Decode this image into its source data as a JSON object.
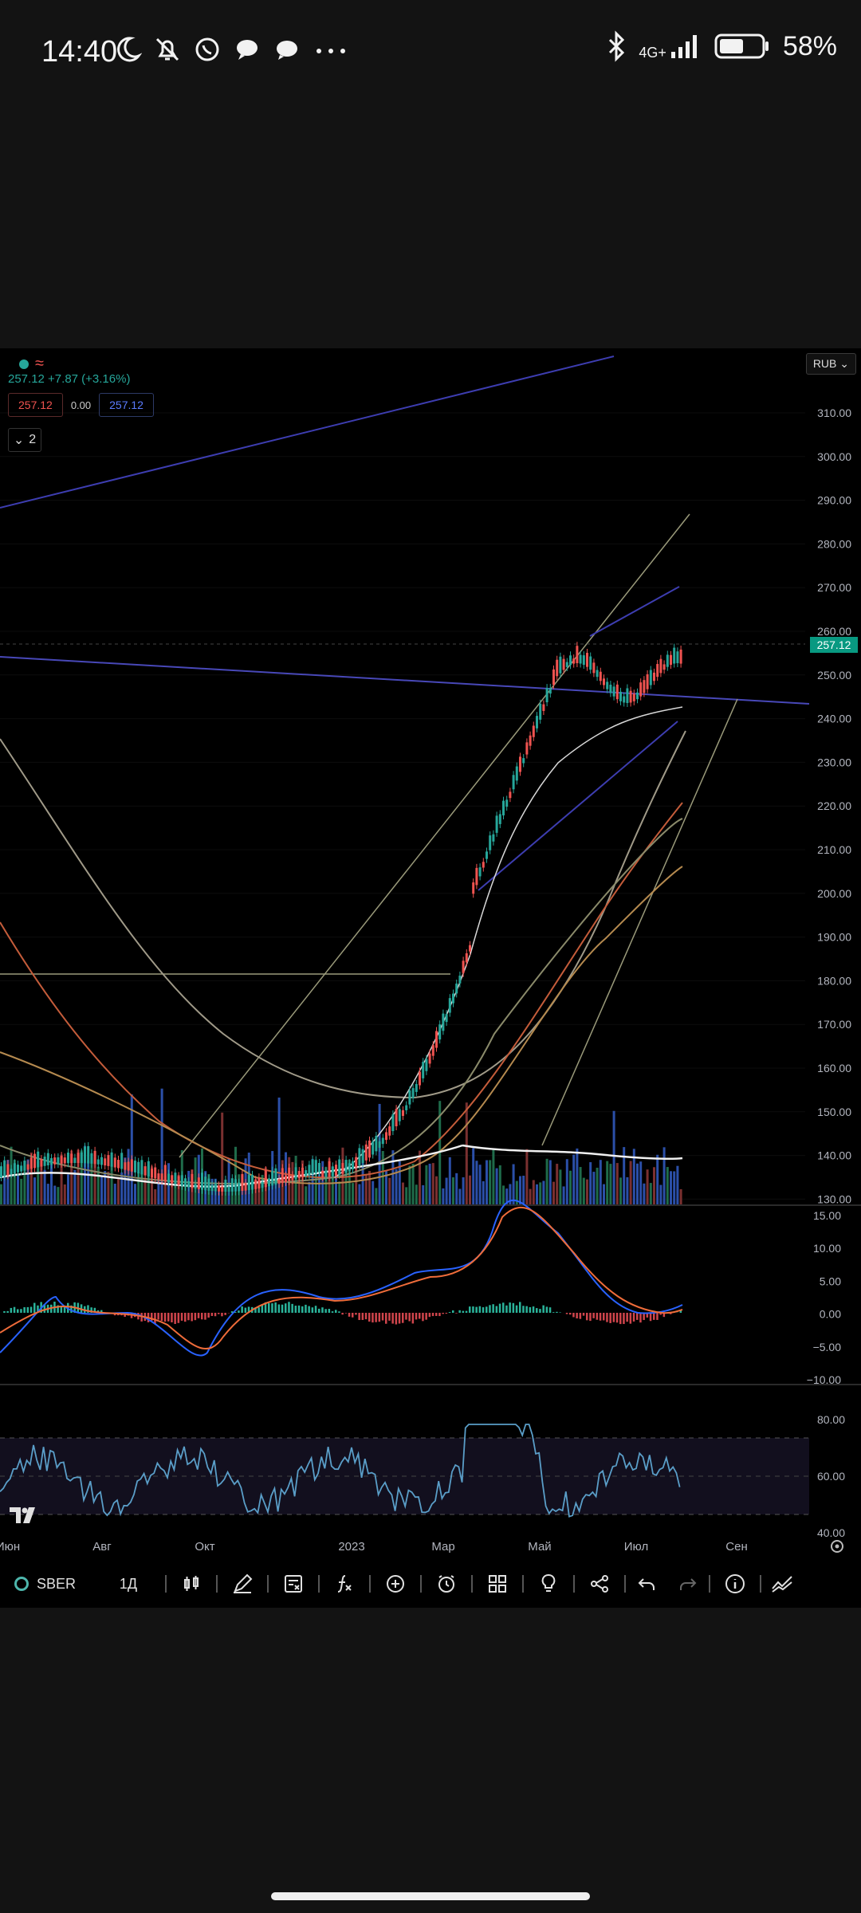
{
  "status_bar": {
    "time": "14:40",
    "network": "4G+",
    "battery": "58%",
    "battery_level": 0.58,
    "icons_left": [
      "moon-icon",
      "bell-off-icon",
      "whatsapp-icon",
      "chat-bubble-icon",
      "message-icon",
      "more-icon"
    ],
    "icons_right": [
      "bluetooth-icon",
      "signal-icon",
      "battery-icon"
    ]
  },
  "legend": {
    "change": "257.12 +7.87 (+3.16%)",
    "bid": "257.12",
    "spread": "0.00",
    "ask": "257.12",
    "collapse_count": "2"
  },
  "currency": "RUB",
  "price_axis": {
    "ticks": [
      "310.00",
      "300.00",
      "290.00",
      "280.00",
      "270.00",
      "260.00",
      "250.00",
      "240.00",
      "230.00",
      "220.00",
      "210.00",
      "200.00",
      "190.00",
      "180.00",
      "170.00",
      "160.00",
      "150.00",
      "140.00",
      "130.00"
    ],
    "last_price": "257.12"
  },
  "macd_axis": {
    "ticks": [
      "15.00",
      "10.00",
      "5.00",
      "0.00",
      "−5.00",
      "−10.00"
    ]
  },
  "rsi_axis": {
    "ticks": [
      "80.00",
      "60.00",
      "40.00"
    ]
  },
  "time_axis": {
    "labels": [
      "Июн",
      "Авг",
      "Окт",
      "2023",
      "Мар",
      "Май",
      "Июл",
      "Сен"
    ]
  },
  "toolbar": {
    "symbol": "SBER",
    "interval": "1Д",
    "tools": [
      "candles-icon",
      "draw-icon",
      "indicators-list-icon",
      "formula-icon",
      "add-icon",
      "alert-icon",
      "layout-icon",
      "idea-icon",
      "share-icon",
      "undo-icon",
      "redo-icon",
      "info-icon",
      "compare-icon"
    ]
  },
  "colors": {
    "up": "#26a69a",
    "down": "#ef5350",
    "accent": "#2962ff",
    "background": "#000000"
  }
}
